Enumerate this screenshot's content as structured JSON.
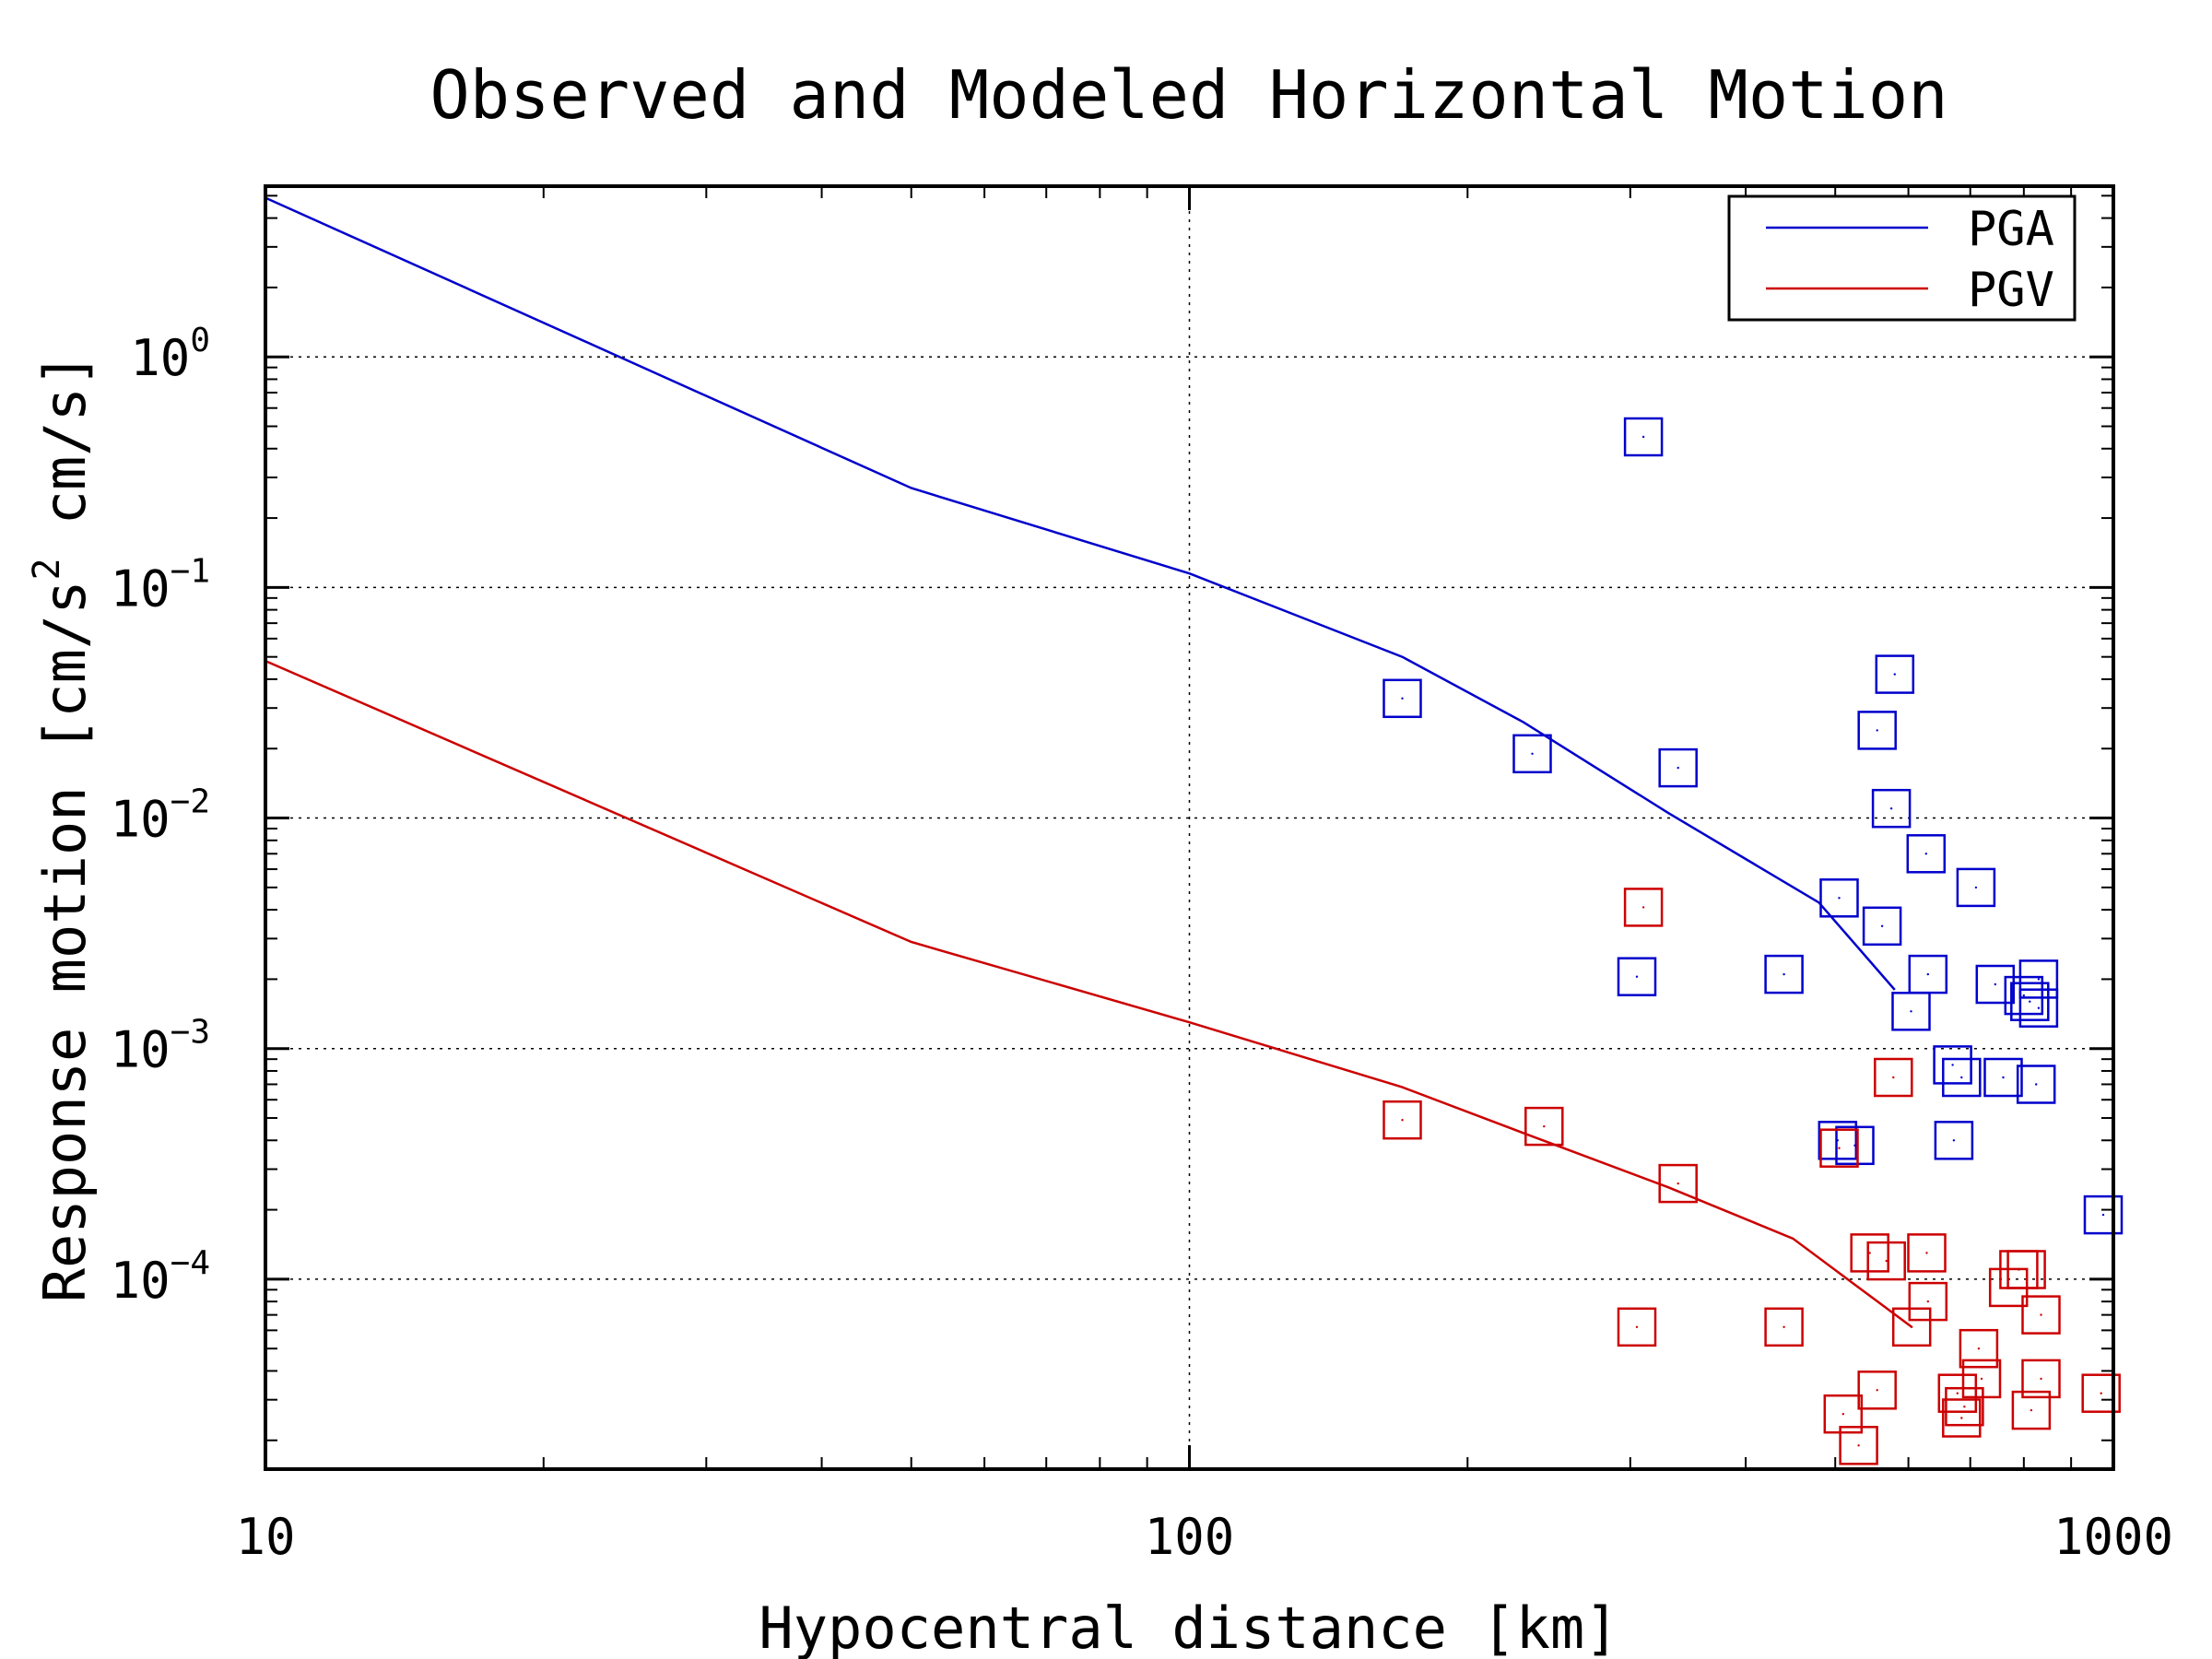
{
  "chart_data": {
    "type": "scatter",
    "title": "Observed and Modeled Horizontal Motion",
    "xlabel": "Hypocentral distance [km]",
    "ylabel": {
      "prefix": "Response motion [cm/s",
      "sup": "2",
      "suffix": "cm/s]"
    },
    "x_scale": "log",
    "y_scale": "log",
    "xlim": [
      10,
      1000
    ],
    "ylim": [
      1.5e-05,
      5.5
    ],
    "x_ticks": [
      {
        "value": 10,
        "label": "10"
      },
      {
        "value": 100,
        "label": "100"
      },
      {
        "value": 1000,
        "label": "1000"
      }
    ],
    "y_ticks": [
      {
        "value": 1,
        "base": "10",
        "exp": "0"
      },
      {
        "value": 0.1,
        "base": "10",
        "exp": "−1"
      },
      {
        "value": 0.01,
        "base": "10",
        "exp": "−2"
      },
      {
        "value": 0.001,
        "base": "10",
        "exp": "−3"
      },
      {
        "value": 0.0001,
        "base": "10",
        "exp": "−4"
      }
    ],
    "grid": true,
    "legend_position": "top-right",
    "series": [
      {
        "name": "PGA",
        "color": "#0000cc",
        "model_line": [
          [
            10,
            4.9
          ],
          [
            50,
            0.27
          ],
          [
            100,
            0.115
          ],
          [
            170,
            0.05
          ],
          [
            230,
            0.026
          ],
          [
            330,
            0.0105
          ],
          [
            480,
            0.0043
          ],
          [
            580,
            0.0018
          ]
        ],
        "observed": [
          [
            310,
            0.45
          ],
          [
            170,
            0.033
          ],
          [
            235,
            0.019
          ],
          [
            338,
            0.0165
          ],
          [
            580,
            0.042
          ],
          [
            555,
            0.024
          ],
          [
            575,
            0.011
          ],
          [
            627,
            0.007
          ],
          [
            710,
            0.005
          ],
          [
            505,
            0.0045
          ],
          [
            562,
            0.0034
          ],
          [
            305,
            0.00205
          ],
          [
            440,
            0.0021
          ],
          [
            630,
            0.0021
          ],
          [
            745,
            0.0019
          ],
          [
            800,
            0.0017
          ],
          [
            830,
            0.002
          ],
          [
            812,
            0.0016
          ],
          [
            830,
            0.0015
          ],
          [
            604,
            0.00145
          ],
          [
            670,
            0.00085
          ],
          [
            685,
            0.00075
          ],
          [
            760,
            0.00075
          ],
          [
            825,
            0.0007
          ],
          [
            503,
            0.0004
          ],
          [
            525,
            0.00038
          ],
          [
            672,
            0.0004
          ],
          [
            975,
            0.00019
          ]
        ]
      },
      {
        "name": "PGV",
        "color": "#cc0000",
        "model_line": [
          [
            10,
            0.048
          ],
          [
            50,
            0.0029
          ],
          [
            100,
            0.0013
          ],
          [
            170,
            0.00068
          ],
          [
            230,
            0.00043
          ],
          [
            330,
            0.00025
          ],
          [
            450,
            0.00015
          ],
          [
            605,
            6.2e-05
          ]
        ],
        "observed": [
          [
            310,
            0.0041
          ],
          [
            578,
            0.00075
          ],
          [
            170,
            0.00049
          ],
          [
            242,
            0.00046
          ],
          [
            338,
            0.00026
          ],
          [
            505,
            0.00037
          ],
          [
            545,
            0.00013
          ],
          [
            568,
            0.00012
          ],
          [
            628,
            0.00013
          ],
          [
            630,
            8e-05
          ],
          [
            790,
            0.00011
          ],
          [
            805,
            0.00011
          ],
          [
            770,
            9.2e-05
          ],
          [
            835,
            7e-05
          ],
          [
            305,
            6.2e-05
          ],
          [
            440,
            6.2e-05
          ],
          [
            605,
            6.2e-05
          ],
          [
            715,
            5e-05
          ],
          [
            720,
            3.7e-05
          ],
          [
            835,
            3.7e-05
          ],
          [
            970,
            3.2e-05
          ],
          [
            555,
            3.3e-05
          ],
          [
            678,
            3.2e-05
          ],
          [
            690,
            2.8e-05
          ],
          [
            685,
            2.5e-05
          ],
          [
            815,
            2.7e-05
          ],
          [
            510,
            2.6e-05
          ],
          [
            530,
            1.9e-05
          ]
        ]
      }
    ]
  }
}
